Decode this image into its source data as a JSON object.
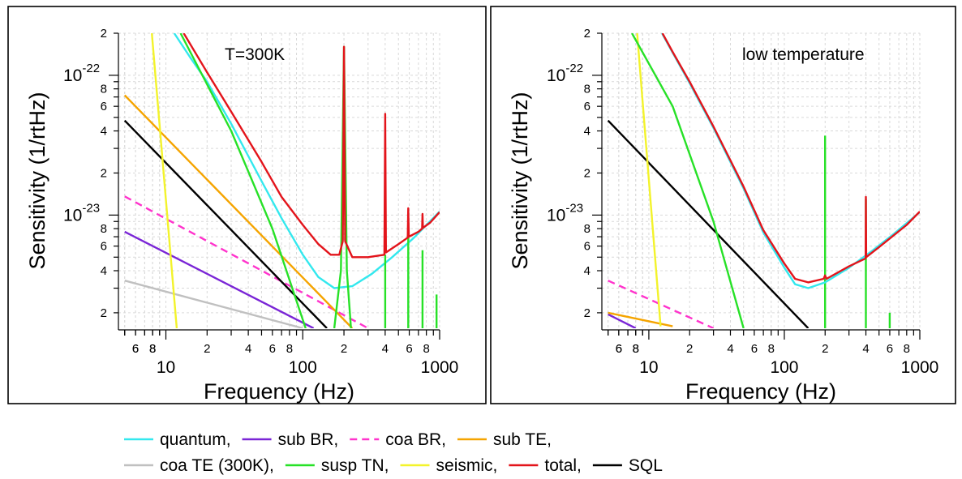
{
  "legend": {
    "rows": [
      [
        {
          "label": "quantum,",
          "color": "#33e8ee",
          "dash": false
        },
        {
          "label": "sub BR,",
          "color": "#7a25d6",
          "dash": false
        },
        {
          "label": "coa BR,",
          "color": "#ff33cc",
          "dash": true
        },
        {
          "label": "sub TE,",
          "color": "#f5a400",
          "dash": false
        }
      ],
      [
        {
          "label": "coa TE (300K),",
          "color": "#c0c0c0",
          "dash": false
        },
        {
          "label": "susp TN,",
          "color": "#27e127",
          "dash": false
        },
        {
          "label": "seismic,",
          "color": "#f3f32b",
          "dash": false
        },
        {
          "label": "total,",
          "color": "#e3141b",
          "dash": false
        },
        {
          "label": "SQL",
          "color": "#000000",
          "dash": false
        }
      ]
    ]
  },
  "chart_data": [
    {
      "type": "line",
      "annotation": "T=300K",
      "xlabel": "Frequency (Hz)",
      "ylabel": "Sensitivity (1/rtHz)",
      "xscale": "log",
      "yscale": "log",
      "xlim": [
        4.5,
        1000
      ],
      "ylim": [
        1.55e-24,
        2e-22
      ],
      "grid": true,
      "x_major_ticks": [
        "10",
        "100",
        "1000"
      ],
      "x_minor_ticks": [
        "6",
        "8",
        "2",
        "4",
        "6",
        "8",
        "2",
        "4",
        "6",
        "8"
      ],
      "y_major_ticks": [
        "10^-22",
        "10^-23"
      ],
      "y_minor_ticks": [
        "2",
        "8",
        "6",
        "4",
        "2",
        "8",
        "6",
        "4",
        "2"
      ],
      "series": [
        {
          "name": "coa TE (300K)",
          "color": "#c0c0c0",
          "points": [
            [
              5,
              3.4e-24
            ],
            [
              100,
              1.55e-24
            ]
          ]
        },
        {
          "name": "sub BR",
          "color": "#7a25d6",
          "points": [
            [
              5,
              7.6e-24
            ],
            [
              120,
              1.55e-24
            ]
          ]
        },
        {
          "name": "coa BR",
          "color": "#ff33cc",
          "dash": true,
          "points": [
            [
              5,
              1.36e-23
            ],
            [
              300,
              1.55e-24
            ]
          ]
        },
        {
          "name": "sub TE",
          "color": "#f5a400",
          "points": [
            [
              5,
              7.2e-23
            ],
            [
              230,
              1.55e-24
            ]
          ]
        },
        {
          "name": "SQL",
          "color": "#000000",
          "points": [
            [
              5,
              4.75e-23
            ],
            [
              150,
              1.55e-24
            ]
          ]
        },
        {
          "name": "seismic",
          "color": "#f3f32b",
          "points": [
            [
              7.9,
              2e-22
            ],
            [
              12,
              1.55e-24
            ]
          ]
        },
        {
          "name": "quantum",
          "color": "#33e8ee",
          "points": [
            [
              11.5,
              2e-22
            ],
            [
              15,
              1.35e-22
            ],
            [
              20,
              9e-23
            ],
            [
              30,
              4.5e-23
            ],
            [
              50,
              1.75e-23
            ],
            [
              70,
              9.5e-24
            ],
            [
              100,
              5.2e-24
            ],
            [
              130,
              3.6e-24
            ],
            [
              170,
              3e-24
            ],
            [
              230,
              3.1e-24
            ],
            [
              320,
              3.8e-24
            ],
            [
              450,
              5e-24
            ],
            [
              650,
              6.9e-24
            ],
            [
              1000,
              1.06e-23
            ]
          ]
        },
        {
          "name": "susp TN",
          "color": "#27e127",
          "points": [
            [
              12.8,
              2e-22
            ],
            [
              30,
              4e-23
            ],
            [
              60,
              8e-24
            ],
            [
              105,
              1.55e-24
            ],
            [
              null,
              null
            ],
            [
              170,
              1.55e-24
            ],
            [
              190,
              4e-24
            ],
            [
              200,
              1.6e-22
            ],
            [
              210,
              4e-24
            ],
            [
              225,
              1.55e-24
            ],
            [
              null,
              null
            ],
            [
              400,
              1.55e-24
            ],
            [
              400,
              5.2e-24
            ],
            [
              null,
              null
            ],
            [
              590,
              1.55e-24
            ],
            [
              590,
              7.2e-24
            ],
            [
              null,
              null
            ],
            [
              750,
              1.55e-24
            ],
            [
              750,
              5.6e-24
            ],
            [
              null,
              null
            ],
            [
              950,
              1.55e-24
            ],
            [
              950,
              2.7e-24
            ]
          ]
        },
        {
          "name": "total",
          "color": "#e3141b",
          "points": [
            [
              13.5,
              2e-22
            ],
            [
              20,
              1.05e-22
            ],
            [
              30,
              5.5e-23
            ],
            [
              50,
              2.4e-23
            ],
            [
              70,
              1.35e-23
            ],
            [
              100,
              8.5e-24
            ],
            [
              130,
              6.2e-24
            ],
            [
              160,
              5.2e-24
            ],
            [
              185,
              5.2e-24
            ],
            [
              196,
              6.5e-24
            ],
            [
              200,
              1.6e-22
            ],
            [
              204,
              6.5e-24
            ],
            [
              230,
              5e-24
            ],
            [
              300,
              5e-24
            ],
            [
              395,
              5.2e-24
            ],
            [
              400,
              5.3e-23
            ],
            [
              405,
              5.4e-24
            ],
            [
              500,
              6.2e-24
            ],
            [
              585,
              6.9e-24
            ],
            [
              590,
              1.12e-23
            ],
            [
              595,
              7e-24
            ],
            [
              700,
              7.6e-24
            ],
            [
              745,
              8e-24
            ],
            [
              750,
              1.02e-23
            ],
            [
              755,
              8.1e-24
            ],
            [
              850,
              8.8e-24
            ],
            [
              1000,
              1.05e-23
            ]
          ]
        }
      ]
    },
    {
      "type": "line",
      "annotation": "low temperature",
      "xlabel": "Frequency (Hz)",
      "ylabel": "Sensitivity (1/rtHz)",
      "xscale": "log",
      "yscale": "log",
      "xlim": [
        4.5,
        1000
      ],
      "ylim": [
        1.55e-24,
        2e-22
      ],
      "grid": true,
      "x_major_ticks": [
        "10",
        "100",
        "1000"
      ],
      "x_minor_ticks": [
        "6",
        "8",
        "2",
        "4",
        "6",
        "8",
        "2",
        "4",
        "6",
        "8"
      ],
      "y_major_ticks": [
        "10^-22",
        "10^-23"
      ],
      "y_minor_ticks": [
        "2",
        "8",
        "6",
        "4",
        "2",
        "8",
        "6",
        "4",
        "2"
      ],
      "series": [
        {
          "name": "sub BR",
          "color": "#7a25d6",
          "points": [
            [
              5,
              1.95e-24
            ],
            [
              8,
              1.55e-24
            ]
          ]
        },
        {
          "name": "sub TE",
          "color": "#f5a400",
          "points": [
            [
              5,
              2e-24
            ],
            [
              15,
              1.6e-24
            ]
          ]
        },
        {
          "name": "coa BR",
          "color": "#ff33cc",
          "dash": true,
          "points": [
            [
              5,
              3.4e-24
            ],
            [
              30,
              1.55e-24
            ]
          ]
        },
        {
          "name": "SQL",
          "color": "#000000",
          "points": [
            [
              5,
              4.75e-23
            ],
            [
              150,
              1.55e-24
            ]
          ]
        },
        {
          "name": "seismic",
          "color": "#f3f32b",
          "points": [
            [
              8.2,
              2e-22
            ],
            [
              12.2,
              1.6e-24
            ]
          ]
        },
        {
          "name": "susp TN",
          "color": "#27e127",
          "points": [
            [
              7.5,
              2e-22
            ],
            [
              15,
              6e-23
            ],
            [
              30,
              9e-24
            ],
            [
              50,
              1.55e-24
            ],
            [
              null,
              null
            ],
            [
              200,
              1.55e-24
            ],
            [
              200,
              3.7e-23
            ],
            [
              null,
              null
            ],
            [
              400,
              1.55e-24
            ],
            [
              400,
              1.3e-23
            ],
            [
              null,
              null
            ],
            [
              600,
              1.55e-24
            ],
            [
              600,
              2e-24
            ]
          ]
        },
        {
          "name": "quantum",
          "color": "#33e8ee",
          "points": [
            [
              12.5,
              2e-22
            ],
            [
              15,
              1.45e-22
            ],
            [
              20,
              8.8e-23
            ],
            [
              30,
              4.2e-23
            ],
            [
              50,
              1.55e-23
            ],
            [
              70,
              7.5e-24
            ],
            [
              100,
              4.2e-24
            ],
            [
              120,
              3.2e-24
            ],
            [
              150,
              3e-24
            ],
            [
              200,
              3.3e-24
            ],
            [
              300,
              4.2e-24
            ],
            [
              450,
              5.6e-24
            ],
            [
              650,
              7.4e-24
            ],
            [
              1000,
              1.05e-23
            ]
          ]
        },
        {
          "name": "total",
          "color": "#e3141b",
          "points": [
            [
              12.6,
              2e-22
            ],
            [
              15,
              1.47e-22
            ],
            [
              20,
              9e-23
            ],
            [
              30,
              4.3e-23
            ],
            [
              50,
              1.6e-23
            ],
            [
              70,
              7.8e-24
            ],
            [
              100,
              4.5e-24
            ],
            [
              120,
              3.5e-24
            ],
            [
              150,
              3.3e-24
            ],
            [
              195,
              3.5e-24
            ],
            [
              200,
              3.7e-24
            ],
            [
              205,
              3.5e-24
            ],
            [
              300,
              4.3e-24
            ],
            [
              398,
              4.9e-24
            ],
            [
              400,
              1.35e-23
            ],
            [
              402,
              5e-24
            ],
            [
              500,
              5.9e-24
            ],
            [
              600,
              6.8e-24
            ],
            [
              800,
              8.5e-24
            ],
            [
              1000,
              1.06e-23
            ]
          ]
        }
      ]
    }
  ]
}
